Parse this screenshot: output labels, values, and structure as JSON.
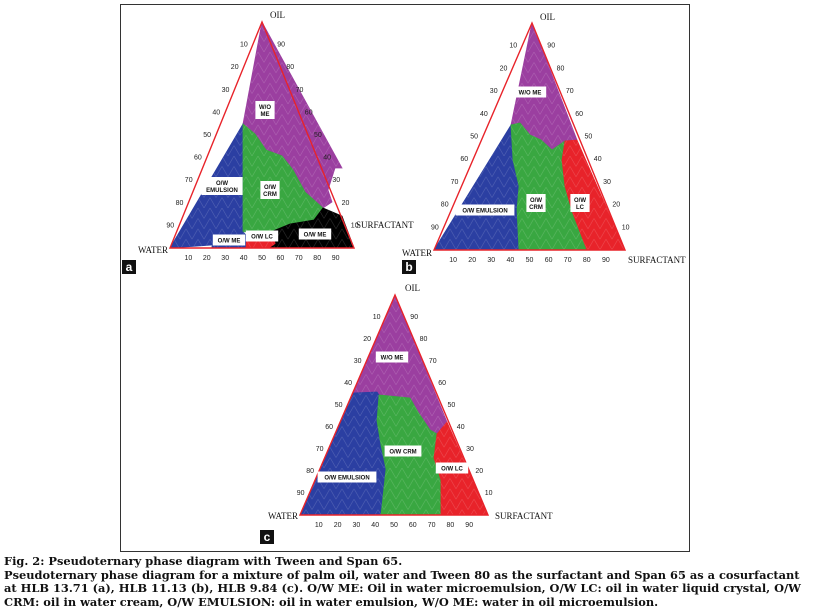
{
  "figure": {
    "panels": [
      {
        "id": "a",
        "vertex_top": "OIL",
        "vertex_left": "WATER",
        "vertex_right": "SURFACTANT",
        "left_ticks": [
          "10",
          "20",
          "30",
          "40",
          "50",
          "60",
          "70",
          "80",
          "90"
        ],
        "right_ticks": [
          "90",
          "80",
          "70",
          "60",
          "50",
          "40",
          "30",
          "20",
          "10"
        ],
        "bottom_ticks": [
          "10",
          "20",
          "30",
          "40",
          "50",
          "60",
          "70",
          "80",
          "90"
        ],
        "regions": [
          {
            "name": "W/O ME",
            "lines": [
              "W/O",
              "ME"
            ],
            "color": "#9b3fa0"
          },
          {
            "name": "O/W EMULSION",
            "lines": [
              "O/W",
              "EMULSION"
            ],
            "color": "#2b3fa2"
          },
          {
            "name": "O/W CRM",
            "lines": [
              "O/W",
              "CRM"
            ],
            "color": "#39a741"
          },
          {
            "name": "O/W ME",
            "lines": [
              "O/W ME"
            ],
            "color": "#2b3fa2"
          },
          {
            "name": "O/W LC",
            "lines": [
              "O/W LC"
            ],
            "color": "#e8232a"
          },
          {
            "name": "O/W ME",
            "lines": [
              "O/W ME"
            ],
            "color": "#000000"
          }
        ]
      },
      {
        "id": "b",
        "vertex_top": "OIL",
        "vertex_left": "WATER",
        "vertex_right": "SURFACTANT",
        "left_ticks": [
          "10",
          "20",
          "30",
          "40",
          "50",
          "60",
          "70",
          "80",
          "90"
        ],
        "right_ticks": [
          "90",
          "80",
          "70",
          "60",
          "50",
          "40",
          "30",
          "20",
          "10"
        ],
        "bottom_ticks": [
          "10",
          "20",
          "30",
          "40",
          "50",
          "60",
          "70",
          "80",
          "90"
        ],
        "regions": [
          {
            "name": "W/O ME",
            "lines": [
              "W/O ME"
            ],
            "color": "#9b3fa0"
          },
          {
            "name": "O/W EMULSION",
            "lines": [
              "O/W EMULSION"
            ],
            "color": "#2b3fa2"
          },
          {
            "name": "O/W CRM",
            "lines": [
              "O/W",
              "CRM"
            ],
            "color": "#39a741"
          },
          {
            "name": "O/W LC",
            "lines": [
              "O/W",
              "LC"
            ],
            "color": "#e8232a"
          }
        ]
      },
      {
        "id": "c",
        "vertex_top": "OIL",
        "vertex_left": "WATER",
        "vertex_right": "SURFACTANT",
        "left_ticks": [
          "10",
          "20",
          "30",
          "40",
          "50",
          "60",
          "70",
          "80",
          "90"
        ],
        "right_ticks": [
          "90",
          "80",
          "70",
          "60",
          "50",
          "40",
          "30",
          "20",
          "10"
        ],
        "bottom_ticks": [
          "10",
          "20",
          "30",
          "40",
          "50",
          "60",
          "70",
          "80",
          "90"
        ],
        "regions": [
          {
            "name": "W/O ME",
            "lines": [
              "W/O ME"
            ],
            "color": "#9b3fa0"
          },
          {
            "name": "O/W EMULSION",
            "lines": [
              "O/W EMULSION"
            ],
            "color": "#2b3fa2"
          },
          {
            "name": "O/W CRM",
            "lines": [
              "O/W CRM"
            ],
            "color": "#39a741"
          },
          {
            "name": "O/W LC",
            "lines": [
              "O/W LC"
            ],
            "color": "#e8232a"
          }
        ]
      }
    ]
  },
  "caption": {
    "title": "Fig. 2: Pseudoternary phase diagram with Tween and Span 65.",
    "body": "Pseudoternary phase diagram for a mixture of palm oil, water and Tween 80 as the surfactant and Span 65 as a cosurfactant at HLB 13.71 (a), HLB 11.13 (b), HLB 9.84 (c). O/W ME: Oil in water microemulsion, O/W LC: oil in water liquid crystal, O/W CRM: oil in water cream, O/W EMULSION: oil in water emulsion, W/O ME: water in oil microemulsion."
  }
}
